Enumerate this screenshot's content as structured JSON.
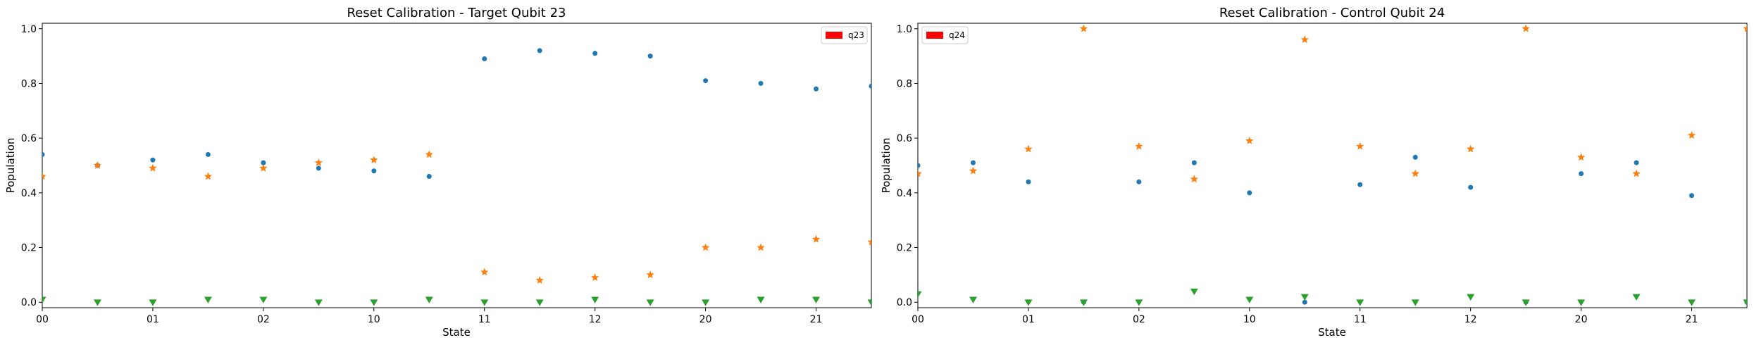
{
  "chart_data": [
    {
      "type": "scatter",
      "title": "Reset Calibration - Target Qubit 23",
      "xlabel": "State",
      "ylabel": "Population",
      "ylim": [
        0,
        1.0
      ],
      "yticks": [
        "0.0",
        "0.2",
        "0.4",
        "0.6",
        "0.8",
        "1.0"
      ],
      "categories": [
        "00",
        "01",
        "02",
        "10",
        "11",
        "12",
        "20",
        "21"
      ],
      "x": [
        0,
        0.5,
        1,
        1.5,
        2,
        2.5,
        3,
        3.5,
        4,
        4.5,
        5,
        5.5,
        6,
        6.5,
        7,
        7.5
      ],
      "xlim": [
        0,
        7.5
      ],
      "legend": {
        "label": "q23",
        "placement": "top-right",
        "color": "#ff0000"
      },
      "series": [
        {
          "marker": "dot",
          "color": "#1f77b4",
          "values": [
            0.54,
            0.5,
            0.52,
            0.54,
            0.51,
            0.49,
            0.48,
            0.46,
            0.89,
            0.92,
            0.91,
            0.9,
            0.81,
            0.8,
            0.78,
            0.79
          ]
        },
        {
          "marker": "star",
          "color": "#ff7f0e",
          "values": [
            0.46,
            0.5,
            0.49,
            0.46,
            0.49,
            0.51,
            0.52,
            0.54,
            0.11,
            0.08,
            0.09,
            0.1,
            0.2,
            0.2,
            0.23,
            0.22
          ]
        },
        {
          "marker": "triangle-down",
          "color": "#2ca02c",
          "values": [
            0.01,
            0.0,
            0.0,
            0.01,
            0.01,
            0.0,
            0.0,
            0.01,
            0.0,
            0.0,
            0.01,
            0.0,
            0.0,
            0.01,
            0.01,
            0.0
          ]
        }
      ]
    },
    {
      "type": "scatter",
      "title": "Reset Calibration - Control Qubit 24",
      "xlabel": "State",
      "ylabel": "Population",
      "ylim": [
        0,
        1.0
      ],
      "yticks": [
        "0.0",
        "0.2",
        "0.4",
        "0.6",
        "0.8",
        "1.0"
      ],
      "categories": [
        "00",
        "01",
        "02",
        "10",
        "11",
        "12",
        "20",
        "21"
      ],
      "x": [
        0,
        0.5,
        1,
        1.5,
        2,
        2.5,
        3,
        3.5,
        4,
        4.5,
        5,
        5.5,
        6,
        6.5,
        7,
        7.5
      ],
      "xlim": [
        0,
        7.5
      ],
      "legend": {
        "label": "q24",
        "placement": "top-left",
        "color": "#ff0000"
      },
      "series": [
        {
          "marker": "dot",
          "color": "#1f77b4",
          "values": [
            0.5,
            0.51,
            0.44,
            0.0,
            0.44,
            0.51,
            0.4,
            0.0,
            0.43,
            0.53,
            0.42,
            0.0,
            0.47,
            0.51,
            0.39,
            0.0
          ]
        },
        {
          "marker": "star",
          "color": "#ff7f0e",
          "values": [
            0.47,
            0.48,
            0.56,
            1.0,
            0.57,
            0.45,
            0.59,
            0.96,
            0.57,
            0.47,
            0.56,
            1.0,
            0.53,
            0.47,
            0.61,
            1.0
          ]
        },
        {
          "marker": "triangle-down",
          "color": "#2ca02c",
          "values": [
            0.03,
            0.01,
            0.0,
            0.0,
            0.0,
            0.04,
            0.01,
            0.02,
            0.0,
            0.0,
            0.02,
            0.0,
            0.0,
            0.02,
            0.0,
            0.0
          ]
        }
      ]
    }
  ]
}
